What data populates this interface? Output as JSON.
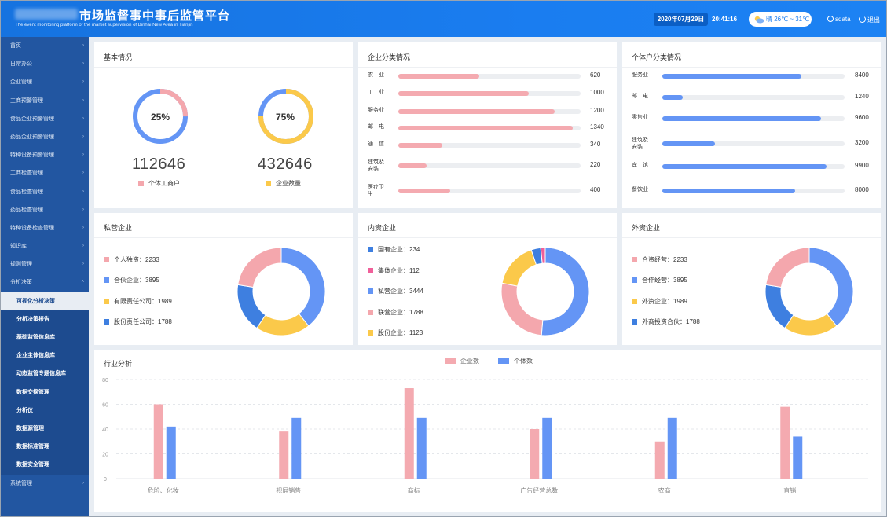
{
  "header": {
    "title": "市场监督事中事后监管平台",
    "subtitle": "The event monitoring platform of the market supervision of Binhai New Area in Tianjin",
    "date": "2020年07月29日",
    "time": "20:41:16",
    "weather": "晴 26℃ ~ 31℃",
    "user": "sdata",
    "logout": "退出"
  },
  "sidebar": {
    "items": [
      {
        "label": "首页",
        "chev": "›"
      },
      {
        "label": "日常办公",
        "chev": "›"
      },
      {
        "label": "企业管理",
        "chev": "›"
      },
      {
        "label": "工商预警管理",
        "chev": "›"
      },
      {
        "label": "食品企业预警管理",
        "chev": "›"
      },
      {
        "label": "药品企业预警管理",
        "chev": "›"
      },
      {
        "label": "特种设备预警管理",
        "chev": "›"
      },
      {
        "label": "工商检查管理",
        "chev": "›"
      },
      {
        "label": "食品检查管理",
        "chev": "›"
      },
      {
        "label": "药品检查管理",
        "chev": "›"
      },
      {
        "label": "特种设备检查管理",
        "chev": "›"
      },
      {
        "label": "知识库",
        "chev": "›"
      },
      {
        "label": "规则管理",
        "chev": "›"
      },
      {
        "label": "分析决策",
        "chev": "˄"
      }
    ],
    "sub_items": [
      {
        "label": "可视化分析决策"
      },
      {
        "label": "分析决策报告"
      },
      {
        "label": "基础监管信息库"
      },
      {
        "label": "企业主体信息库"
      },
      {
        "label": "动态监管专题信息库"
      },
      {
        "label": "数据交换管理"
      },
      {
        "label": "分析仪"
      },
      {
        "label": "数据源管理"
      },
      {
        "label": "数据标准管理"
      },
      {
        "label": "数据安全管理"
      }
    ],
    "last_item": {
      "label": "系统管理",
      "chev": "›"
    }
  },
  "colors": {
    "pink": "#f4a7ad",
    "blue": "#6495f5",
    "yellow": "#fbc94a",
    "darkblue": "#3e7fe0",
    "rose": "#f0609a",
    "lightpink": "#f4aab0"
  },
  "basic": {
    "title": "基本情况",
    "donut1": {
      "pct_label": "25%",
      "fraction": 0.25,
      "number": "112646",
      "legend": "个体工商户"
    },
    "donut2": {
      "pct_label": "75%",
      "fraction": 0.75,
      "number": "432646",
      "legend": "企业数量"
    }
  },
  "enterprise_class": {
    "title": "企业分类情况",
    "max": 1400,
    "rows": [
      {
        "label": "农　业",
        "value": 620
      },
      {
        "label": "工　业",
        "value": 1000
      },
      {
        "label": "服务业",
        "value": 1200
      },
      {
        "label": "邮　电",
        "value": 1340
      },
      {
        "label": "通　信",
        "value": 340
      },
      {
        "label": "建筑及安装",
        "value": 220
      },
      {
        "label": "医疗卫生",
        "value": 400
      }
    ]
  },
  "individual_class": {
    "title": "个体户分类情况",
    "max": 11000,
    "rows": [
      {
        "label": "服务业",
        "value": 8400
      },
      {
        "label": "邮　电",
        "value": 1240
      },
      {
        "label": "零售业",
        "value": 9600
      },
      {
        "label": "建筑及安装",
        "value": 3200
      },
      {
        "label": "宾　馆",
        "value": 9900
      },
      {
        "label": "餐饮业",
        "value": 8000
      }
    ]
  },
  "private": {
    "title": "私营企业",
    "items": [
      {
        "label": "个人独资：2233",
        "value": 2233,
        "color": "#f4a7ad"
      },
      {
        "label": "合伙企业：3895",
        "value": 3895,
        "color": "#6495f5"
      },
      {
        "label": "有限责任公司：1989",
        "value": 1989,
        "color": "#fbc94a"
      },
      {
        "label": "股份责任公司：1788",
        "value": 1788,
        "color": "#3e7fe0"
      }
    ]
  },
  "domestic": {
    "title": "内资企业",
    "items": [
      {
        "label": "国有企业：234",
        "value": 234,
        "color": "#3e7fe0"
      },
      {
        "label": "集体企业：112",
        "value": 112,
        "color": "#f0609a"
      },
      {
        "label": "私营企业：3444",
        "value": 3444,
        "color": "#6495f5"
      },
      {
        "label": "联营企业：1788",
        "value": 1788,
        "color": "#f4a7ad"
      },
      {
        "label": "股份企业：1123",
        "value": 1123,
        "color": "#fbc94a"
      }
    ]
  },
  "foreign": {
    "title": "外资企业",
    "items": [
      {
        "label": "合资经营：2233",
        "value": 2233,
        "color": "#f4a7ad"
      },
      {
        "label": "合作经营：3895",
        "value": 3895,
        "color": "#6495f5"
      },
      {
        "label": "外资企业：1989",
        "value": 1989,
        "color": "#fbc94a"
      },
      {
        "label": "外商投资合伙：1788",
        "value": 1788,
        "color": "#3e7fe0"
      }
    ]
  },
  "chart_data": {
    "type": "bar",
    "title": "行业分析",
    "categories": [
      "危险、化妆",
      "视屏销售",
      "商标",
      "广告经营总数",
      "农商",
      "直销"
    ],
    "series": [
      {
        "name": "企业数",
        "values": [
          60,
          38,
          73,
          40,
          30,
          58
        ],
        "color": "#f4aab0"
      },
      {
        "name": "个体数",
        "values": [
          42,
          49,
          49,
          49,
          49,
          34
        ],
        "color": "#6495f5"
      }
    ],
    "ylim": [
      0,
      80
    ],
    "yticks": [
      "0",
      "20",
      "40",
      "60",
      "80"
    ],
    "grid": true,
    "legend": "top-center"
  }
}
